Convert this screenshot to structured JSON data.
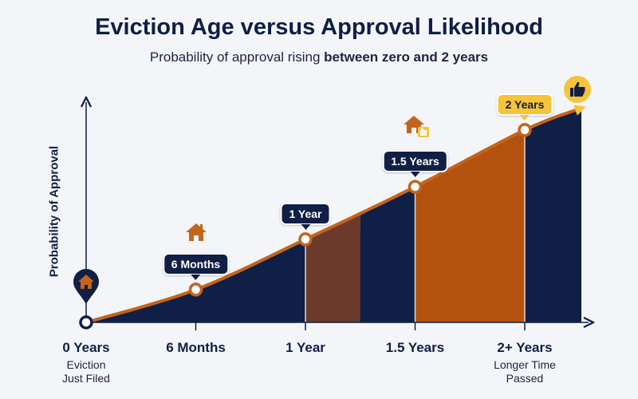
{
  "title": "Eviction Age versus Approval Likelihood",
  "subtitle_plain": "Probability of approval rising ",
  "subtitle_bold": "between zero and 2 years",
  "chart_data": {
    "type": "area",
    "ylabel": "Probability of Approval",
    "categories": [
      "0 Years",
      "6 Months",
      "1 Year",
      "1.5 Years",
      "2+ Years"
    ],
    "category_sublabels": [
      "Eviction\nJust Filed",
      "",
      "",
      "",
      "Longer Time\nPassed"
    ],
    "x_years": [
      0,
      0.5,
      1,
      1.5,
      2
    ],
    "point_labels": [
      "",
      "6 Months",
      "1 Year",
      "1.5 Years",
      "2 Years"
    ],
    "relative_probability": [
      0,
      0.15,
      0.38,
      0.62,
      0.88
    ],
    "end_relative_probability": 0.98,
    "grid": false,
    "colors": {
      "navy": "#0f1f45",
      "brown": "#6b3a2a",
      "orange": "#b3520f",
      "line": "#c4641d",
      "gold": "#f6c33a"
    }
  },
  "icons": {
    "start": "house-icon",
    "six_months": "house-icon",
    "one_half_years": "house-thumbs-up-icon",
    "end": "thumbs-up-icon"
  }
}
